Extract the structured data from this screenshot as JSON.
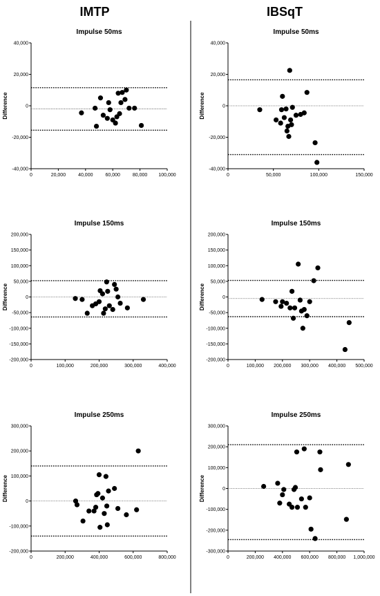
{
  "figure": {
    "col_titles": [
      "IMTP",
      "IBSqT"
    ]
  },
  "chart_data": [
    {
      "type": "scatter",
      "col": 0,
      "row": 0,
      "title": "Impulse 50ms",
      "ylabel": "Difference",
      "xlabel": "",
      "xlim": [
        0,
        100000
      ],
      "ylim": [
        -40000,
        40000
      ],
      "xticks": [
        0,
        20000,
        40000,
        60000,
        80000,
        100000
      ],
      "xtick_labels": [
        "0",
        "20,000",
        "40,000",
        "60,000",
        "80,000",
        "100,000"
      ],
      "yticks": [
        -40000,
        -20000,
        0,
        20000,
        40000
      ],
      "ytick_labels": [
        "-40,000",
        "-20,000",
        "0",
        "20,000",
        "40,000"
      ],
      "lines": {
        "mean": -2000,
        "upper_loa": 11500,
        "lower_loa": -15500
      },
      "points": [
        {
          "x": 37000,
          "y": -4500
        },
        {
          "x": 47000,
          "y": -1500
        },
        {
          "x": 48000,
          "y": -13000
        },
        {
          "x": 51000,
          "y": 5000
        },
        {
          "x": 53000,
          "y": -6000
        },
        {
          "x": 56000,
          "y": -8000
        },
        {
          "x": 57000,
          "y": 2000
        },
        {
          "x": 58000,
          "y": -2500
        },
        {
          "x": 60000,
          "y": -9000
        },
        {
          "x": 62000,
          "y": -11000
        },
        {
          "x": 63000,
          "y": -7000
        },
        {
          "x": 64000,
          "y": 8000
        },
        {
          "x": 65000,
          "y": -5000
        },
        {
          "x": 66000,
          "y": 2000
        },
        {
          "x": 67000,
          "y": 8500
        },
        {
          "x": 69000,
          "y": 4000
        },
        {
          "x": 70000,
          "y": 10000
        },
        {
          "x": 72000,
          "y": -1500
        },
        {
          "x": 76000,
          "y": -1500
        },
        {
          "x": 81000,
          "y": -12500
        }
      ]
    },
    {
      "type": "scatter",
      "col": 1,
      "row": 0,
      "title": "Impulse 50ms",
      "ylabel": "Difference",
      "xlabel": "",
      "xlim": [
        0,
        150000
      ],
      "ylim": [
        -40000,
        40000
      ],
      "xticks": [
        0,
        50000,
        100000,
        150000
      ],
      "xtick_labels": [
        "0",
        "50,000",
        "100,000",
        "150,000"
      ],
      "yticks": [
        -40000,
        -20000,
        0,
        20000,
        40000
      ],
      "ytick_labels": [
        "-40,000",
        "-20,000",
        "0",
        "20,000",
        "40,000"
      ],
      "lines": {
        "mean": 0,
        "upper_loa": 16500,
        "lower_loa": -31000
      },
      "points": [
        {
          "x": 35000,
          "y": -2500
        },
        {
          "x": 53000,
          "y": -9000
        },
        {
          "x": 58000,
          "y": -11000
        },
        {
          "x": 59000,
          "y": -2500
        },
        {
          "x": 60000,
          "y": 6000
        },
        {
          "x": 62000,
          "y": -7500
        },
        {
          "x": 64000,
          "y": -2000
        },
        {
          "x": 65000,
          "y": -16000
        },
        {
          "x": 66000,
          "y": -13000
        },
        {
          "x": 67000,
          "y": -19500
        },
        {
          "x": 68000,
          "y": 22500
        },
        {
          "x": 69000,
          "y": -9000
        },
        {
          "x": 70000,
          "y": -12000
        },
        {
          "x": 71000,
          "y": -1000
        },
        {
          "x": 75000,
          "y": -6000
        },
        {
          "x": 80000,
          "y": -5500
        },
        {
          "x": 84000,
          "y": -4500
        },
        {
          "x": 87000,
          "y": 8500
        },
        {
          "x": 96000,
          "y": -23500
        },
        {
          "x": 98000,
          "y": -36000
        }
      ]
    },
    {
      "type": "scatter",
      "col": 0,
      "row": 1,
      "title": "Impulse 150ms",
      "ylabel": "Difference",
      "xlabel": "",
      "xlim": [
        0,
        400000
      ],
      "ylim": [
        -200000,
        200000
      ],
      "xticks": [
        0,
        100000,
        200000,
        300000,
        400000
      ],
      "xtick_labels": [
        "0",
        "100,000",
        "200,000",
        "300,000",
        "400,000"
      ],
      "yticks": [
        -200000,
        -150000,
        -100000,
        -50000,
        0,
        50000,
        100000,
        150000,
        200000
      ],
      "ytick_labels": [
        "-200,000",
        "-150,000",
        "-100,000",
        "-50,000",
        "0",
        "50,000",
        "100,000",
        "150,000",
        "200,000"
      ],
      "lines": {
        "mean": 0,
        "upper_loa": 52000,
        "lower_loa": -64000
      },
      "points": [
        {
          "x": 130000,
          "y": -5000
        },
        {
          "x": 150000,
          "y": -8000
        },
        {
          "x": 165000,
          "y": -52000
        },
        {
          "x": 180000,
          "y": -28000
        },
        {
          "x": 190000,
          "y": -22000
        },
        {
          "x": 200000,
          "y": -15000
        },
        {
          "x": 203000,
          "y": 20000
        },
        {
          "x": 210000,
          "y": 10000
        },
        {
          "x": 213000,
          "y": -52000
        },
        {
          "x": 218000,
          "y": -38000
        },
        {
          "x": 222000,
          "y": 48000
        },
        {
          "x": 225000,
          "y": 18000
        },
        {
          "x": 230000,
          "y": -28000
        },
        {
          "x": 240000,
          "y": -40000
        },
        {
          "x": 245000,
          "y": 40000
        },
        {
          "x": 250000,
          "y": 25000
        },
        {
          "x": 255000,
          "y": 0
        },
        {
          "x": 262000,
          "y": -20000
        },
        {
          "x": 283000,
          "y": -35000
        },
        {
          "x": 330000,
          "y": -8000
        }
      ]
    },
    {
      "type": "scatter",
      "col": 1,
      "row": 1,
      "title": "Impulse 150ms",
      "ylabel": "Difference",
      "xlabel": "",
      "xlim": [
        0,
        500000
      ],
      "ylim": [
        -200000,
        200000
      ],
      "xticks": [
        0,
        100000,
        200000,
        300000,
        400000,
        500000
      ],
      "xtick_labels": [
        "0",
        "100,000",
        "200,000",
        "300,000",
        "400,000",
        "500,000"
      ],
      "yticks": [
        -200000,
        -150000,
        -100000,
        -50000,
        0,
        50000,
        100000,
        150000,
        200000
      ],
      "ytick_labels": [
        "-200,000",
        "-150,000",
        "-100,000",
        "-50,000",
        "0",
        "50,000",
        "100,000",
        "150,000",
        "200,000"
      ],
      "lines": {
        "mean": -5000,
        "upper_loa": 53000,
        "lower_loa": -63000
      },
      "points": [
        {
          "x": 125000,
          "y": -8000
        },
        {
          "x": 175000,
          "y": -15000
        },
        {
          "x": 195000,
          "y": -30000
        },
        {
          "x": 200000,
          "y": -15000
        },
        {
          "x": 215000,
          "y": -20000
        },
        {
          "x": 228000,
          "y": -35000
        },
        {
          "x": 235000,
          "y": 18000
        },
        {
          "x": 240000,
          "y": -68000
        },
        {
          "x": 245000,
          "y": -35000
        },
        {
          "x": 258000,
          "y": 105000
        },
        {
          "x": 265000,
          "y": -10000
        },
        {
          "x": 270000,
          "y": -45000
        },
        {
          "x": 275000,
          "y": -100000
        },
        {
          "x": 280000,
          "y": -40000
        },
        {
          "x": 290000,
          "y": -60000
        },
        {
          "x": 300000,
          "y": -15000
        },
        {
          "x": 315000,
          "y": 52000
        },
        {
          "x": 330000,
          "y": 93000
        },
        {
          "x": 430000,
          "y": -168000
        },
        {
          "x": 445000,
          "y": -82000
        }
      ]
    },
    {
      "type": "scatter",
      "col": 0,
      "row": 2,
      "title": "Impulse 250ms",
      "ylabel": "Difference",
      "xlabel": "",
      "xlim": [
        0,
        800000
      ],
      "ylim": [
        -200000,
        300000
      ],
      "xticks": [
        0,
        200000,
        400000,
        600000,
        800000
      ],
      "xtick_labels": [
        "0",
        "200,000",
        "400,000",
        "600,000",
        "800,000"
      ],
      "yticks": [
        -200000,
        -100000,
        0,
        100000,
        200000,
        300000
      ],
      "ytick_labels": [
        "-200,000",
        "-100,000",
        "0",
        "100,000",
        "200,000",
        "300,000"
      ],
      "lines": {
        "mean": 0,
        "upper_loa": 140000,
        "lower_loa": -140000
      },
      "points": [
        {
          "x": 262000,
          "y": 0
        },
        {
          "x": 270000,
          "y": -15000
        },
        {
          "x": 305000,
          "y": -80000
        },
        {
          "x": 340000,
          "y": -40000
        },
        {
          "x": 370000,
          "y": -40000
        },
        {
          "x": 380000,
          "y": -25000
        },
        {
          "x": 385000,
          "y": 25000
        },
        {
          "x": 393000,
          "y": 30000
        },
        {
          "x": 400000,
          "y": 105000
        },
        {
          "x": 405000,
          "y": -105000
        },
        {
          "x": 420000,
          "y": 12000
        },
        {
          "x": 430000,
          "y": -50000
        },
        {
          "x": 440000,
          "y": 98000
        },
        {
          "x": 445000,
          "y": -20000
        },
        {
          "x": 448000,
          "y": -95000
        },
        {
          "x": 455000,
          "y": 40000
        },
        {
          "x": 490000,
          "y": 50000
        },
        {
          "x": 510000,
          "y": -30000
        },
        {
          "x": 560000,
          "y": -55000
        },
        {
          "x": 620000,
          "y": -35000
        },
        {
          "x": 630000,
          "y": 200000
        }
      ]
    },
    {
      "type": "scatter",
      "col": 1,
      "row": 2,
      "title": "Impulse 250ms",
      "ylabel": "Difference",
      "xlabel": "",
      "xlim": [
        0,
        1000000
      ],
      "ylim": [
        -300000,
        300000
      ],
      "xticks": [
        0,
        200000,
        400000,
        600000,
        800000,
        1000000
      ],
      "xtick_labels": [
        "0",
        "200,000",
        "400,000",
        "600,000",
        "800,000",
        "1,000,000"
      ],
      "yticks": [
        -300000,
        -200000,
        -100000,
        0,
        100000,
        200000,
        300000
      ],
      "ytick_labels": [
        "-300,000",
        "-200,000",
        "-100,000",
        "0",
        "100,000",
        "200,000",
        "300,000"
      ],
      "lines": {
        "mean": 0,
        "upper_loa": 210000,
        "lower_loa": -245000
      },
      "points": [
        {
          "x": 262000,
          "y": 10000
        },
        {
          "x": 365000,
          "y": 25000
        },
        {
          "x": 380000,
          "y": -70000
        },
        {
          "x": 400000,
          "y": -30000
        },
        {
          "x": 410000,
          "y": -5000
        },
        {
          "x": 450000,
          "y": -75000
        },
        {
          "x": 470000,
          "y": -90000
        },
        {
          "x": 485000,
          "y": -5000
        },
        {
          "x": 495000,
          "y": 5000
        },
        {
          "x": 505000,
          "y": 175000
        },
        {
          "x": 510000,
          "y": -90000
        },
        {
          "x": 540000,
          "y": -50000
        },
        {
          "x": 560000,
          "y": 190000
        },
        {
          "x": 570000,
          "y": -90000
        },
        {
          "x": 600000,
          "y": -45000
        },
        {
          "x": 610000,
          "y": -195000
        },
        {
          "x": 640000,
          "y": -240000
        },
        {
          "x": 675000,
          "y": 175000
        },
        {
          "x": 680000,
          "y": 90000
        },
        {
          "x": 870000,
          "y": -148000
        },
        {
          "x": 885000,
          "y": 115000
        }
      ]
    }
  ]
}
